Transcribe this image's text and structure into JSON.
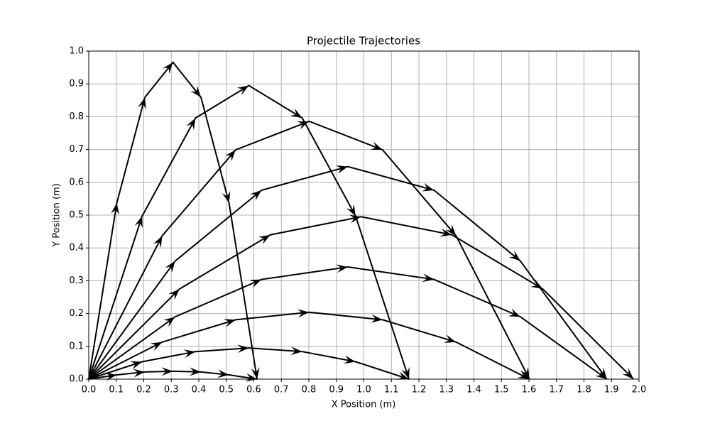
{
  "chart_data": {
    "type": "quiver",
    "title": "Projectile Trajectories",
    "x_label": "X Position (m)",
    "y_label": "Y Position (m)",
    "color": "#000000",
    "grid": true,
    "xlim": [
      0,
      2
    ],
    "ylim": [
      0,
      1
    ],
    "xticks": [
      {
        "value": 0,
        "label": "0.0"
      },
      {
        "value": 0.1,
        "label": "0.1"
      },
      {
        "value": 0.2,
        "label": "0.2"
      },
      {
        "value": 0.3,
        "label": "0.3"
      },
      {
        "value": 0.4,
        "label": "0.4"
      },
      {
        "value": 0.5,
        "label": "0.5"
      },
      {
        "value": 0.6,
        "label": "0.6"
      },
      {
        "value": 0.7,
        "label": "0.7"
      },
      {
        "value": 0.8,
        "label": "0.8"
      },
      {
        "value": 0.9,
        "label": "0.9"
      },
      {
        "value": 1,
        "label": "1.0"
      },
      {
        "value": 1.1,
        "label": "1.1"
      },
      {
        "value": 1.2,
        "label": "1.2"
      },
      {
        "value": 1.3,
        "label": "1.3"
      },
      {
        "value": 1.4,
        "label": "1.4"
      },
      {
        "value": 1.5,
        "label": "1.5"
      },
      {
        "value": 1.6,
        "label": "1.6"
      },
      {
        "value": 1.7,
        "label": "1.7"
      },
      {
        "value": 1.8,
        "label": "1.8"
      },
      {
        "value": 1.9,
        "label": "1.9"
      },
      {
        "value": 2,
        "label": "2.0"
      }
    ],
    "yticks": [
      {
        "value": 0,
        "label": "0.0"
      },
      {
        "value": 0.1,
        "label": "0.1"
      },
      {
        "value": 0.2,
        "label": "0.2"
      },
      {
        "value": 0.3,
        "label": "0.3"
      },
      {
        "value": 0.4,
        "label": "0.4"
      },
      {
        "value": 0.5,
        "label": "0.5"
      },
      {
        "value": 0.6,
        "label": "0.6"
      },
      {
        "value": 0.7,
        "label": "0.7"
      },
      {
        "value": 0.8,
        "label": "0.8"
      },
      {
        "value": 0.9,
        "label": "0.9"
      },
      {
        "value": 1,
        "label": "1.0"
      }
    ],
    "series": [
      {
        "x": [
          0,
          0.102,
          0.204,
          0.306,
          0.408,
          0.51,
          0.612
        ],
        "y": [
          0,
          0.013,
          0.022,
          0.024,
          0.022,
          0.013,
          0
        ]
      },
      {
        "x": [
          0,
          0.194,
          0.388,
          0.582,
          0.776,
          0.97,
          1.164
        ],
        "y": [
          0,
          0.053,
          0.084,
          0.095,
          0.084,
          0.053,
          0
        ]
      },
      {
        "x": [
          0,
          0.267,
          0.534,
          0.801,
          1.068,
          1.335,
          1.602
        ],
        "y": [
          0,
          0.113,
          0.181,
          0.204,
          0.181,
          0.113,
          0
        ]
      },
      {
        "x": [
          0,
          0.314,
          0.628,
          0.942,
          1.255,
          1.569,
          1.883
        ],
        "y": [
          0,
          0.19,
          0.304,
          0.342,
          0.304,
          0.19,
          0
        ]
      },
      {
        "x": [
          0,
          0.33,
          0.66,
          0.99,
          1.32,
          1.65,
          1.98
        ],
        "y": [
          0,
          0.275,
          0.44,
          0.495,
          0.44,
          0.275,
          0
        ]
      },
      {
        "x": [
          0,
          0.314,
          0.628,
          0.942,
          1.255,
          1.569,
          1.883
        ],
        "y": [
          0,
          0.36,
          0.576,
          0.648,
          0.576,
          0.36,
          0
        ]
      },
      {
        "x": [
          0,
          0.267,
          0.534,
          0.801,
          1.068,
          1.335,
          1.602
        ],
        "y": [
          0,
          0.437,
          0.699,
          0.786,
          0.699,
          0.437,
          0
        ]
      },
      {
        "x": [
          0,
          0.194,
          0.388,
          0.582,
          0.776,
          0.97,
          1.164
        ],
        "y": [
          0,
          0.497,
          0.796,
          0.895,
          0.796,
          0.497,
          0
        ]
      },
      {
        "x": [
          0,
          0.102,
          0.204,
          0.306,
          0.408,
          0.51,
          0.612
        ],
        "y": [
          0,
          0.537,
          0.859,
          0.966,
          0.859,
          0.537,
          0
        ]
      }
    ]
  }
}
